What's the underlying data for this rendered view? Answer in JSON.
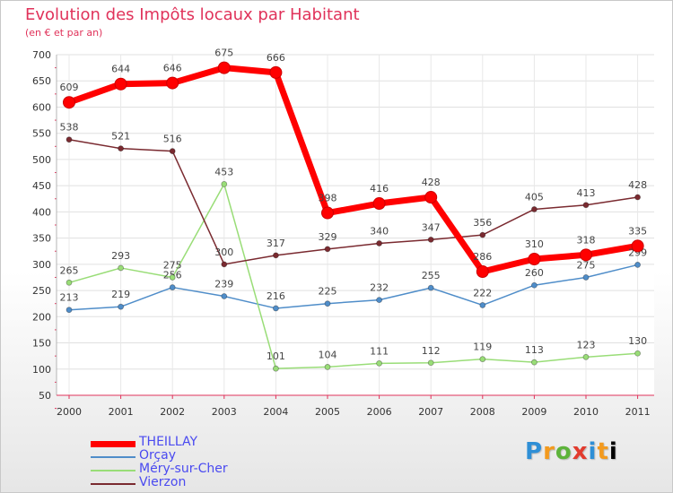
{
  "chart_data": {
    "type": "line",
    "title": "Evolution des Impôts locaux par Habitant",
    "subtitle": "(en € et par an)",
    "xlabel": "",
    "ylabel": "",
    "categories": [
      "2000",
      "2001",
      "2002",
      "2003",
      "2004",
      "2005",
      "2006",
      "2007",
      "2008",
      "2009",
      "2010",
      "2011"
    ],
    "ylim": [
      50,
      700
    ],
    "yticks": [
      50,
      100,
      150,
      200,
      250,
      300,
      350,
      400,
      450,
      500,
      550,
      600,
      650,
      700
    ],
    "grid": true,
    "legend_position": "bottom-left",
    "series": [
      {
        "name": "THEILLAY",
        "color": "#ff0000",
        "values": [
          609,
          644,
          646,
          675,
          666,
          398,
          416,
          428,
          286,
          310,
          318,
          335
        ]
      },
      {
        "name": "Orçay",
        "color": "#4f8dc9",
        "values": [
          213,
          219,
          256,
          239,
          216,
          225,
          232,
          255,
          222,
          260,
          275,
          299
        ]
      },
      {
        "name": "Méry-sur-Cher",
        "color": "#99dd77",
        "values": [
          265,
          293,
          275,
          453,
          101,
          104,
          111,
          112,
          119,
          113,
          123,
          130
        ]
      },
      {
        "name": "Vierzon",
        "color": "#7a2a30",
        "values": [
          538,
          521,
          516,
          300,
          317,
          329,
          340,
          347,
          356,
          405,
          413,
          428
        ]
      }
    ]
  },
  "logo": {
    "letters": [
      "P",
      "r",
      "o",
      "x",
      "i",
      "t",
      "i"
    ]
  }
}
